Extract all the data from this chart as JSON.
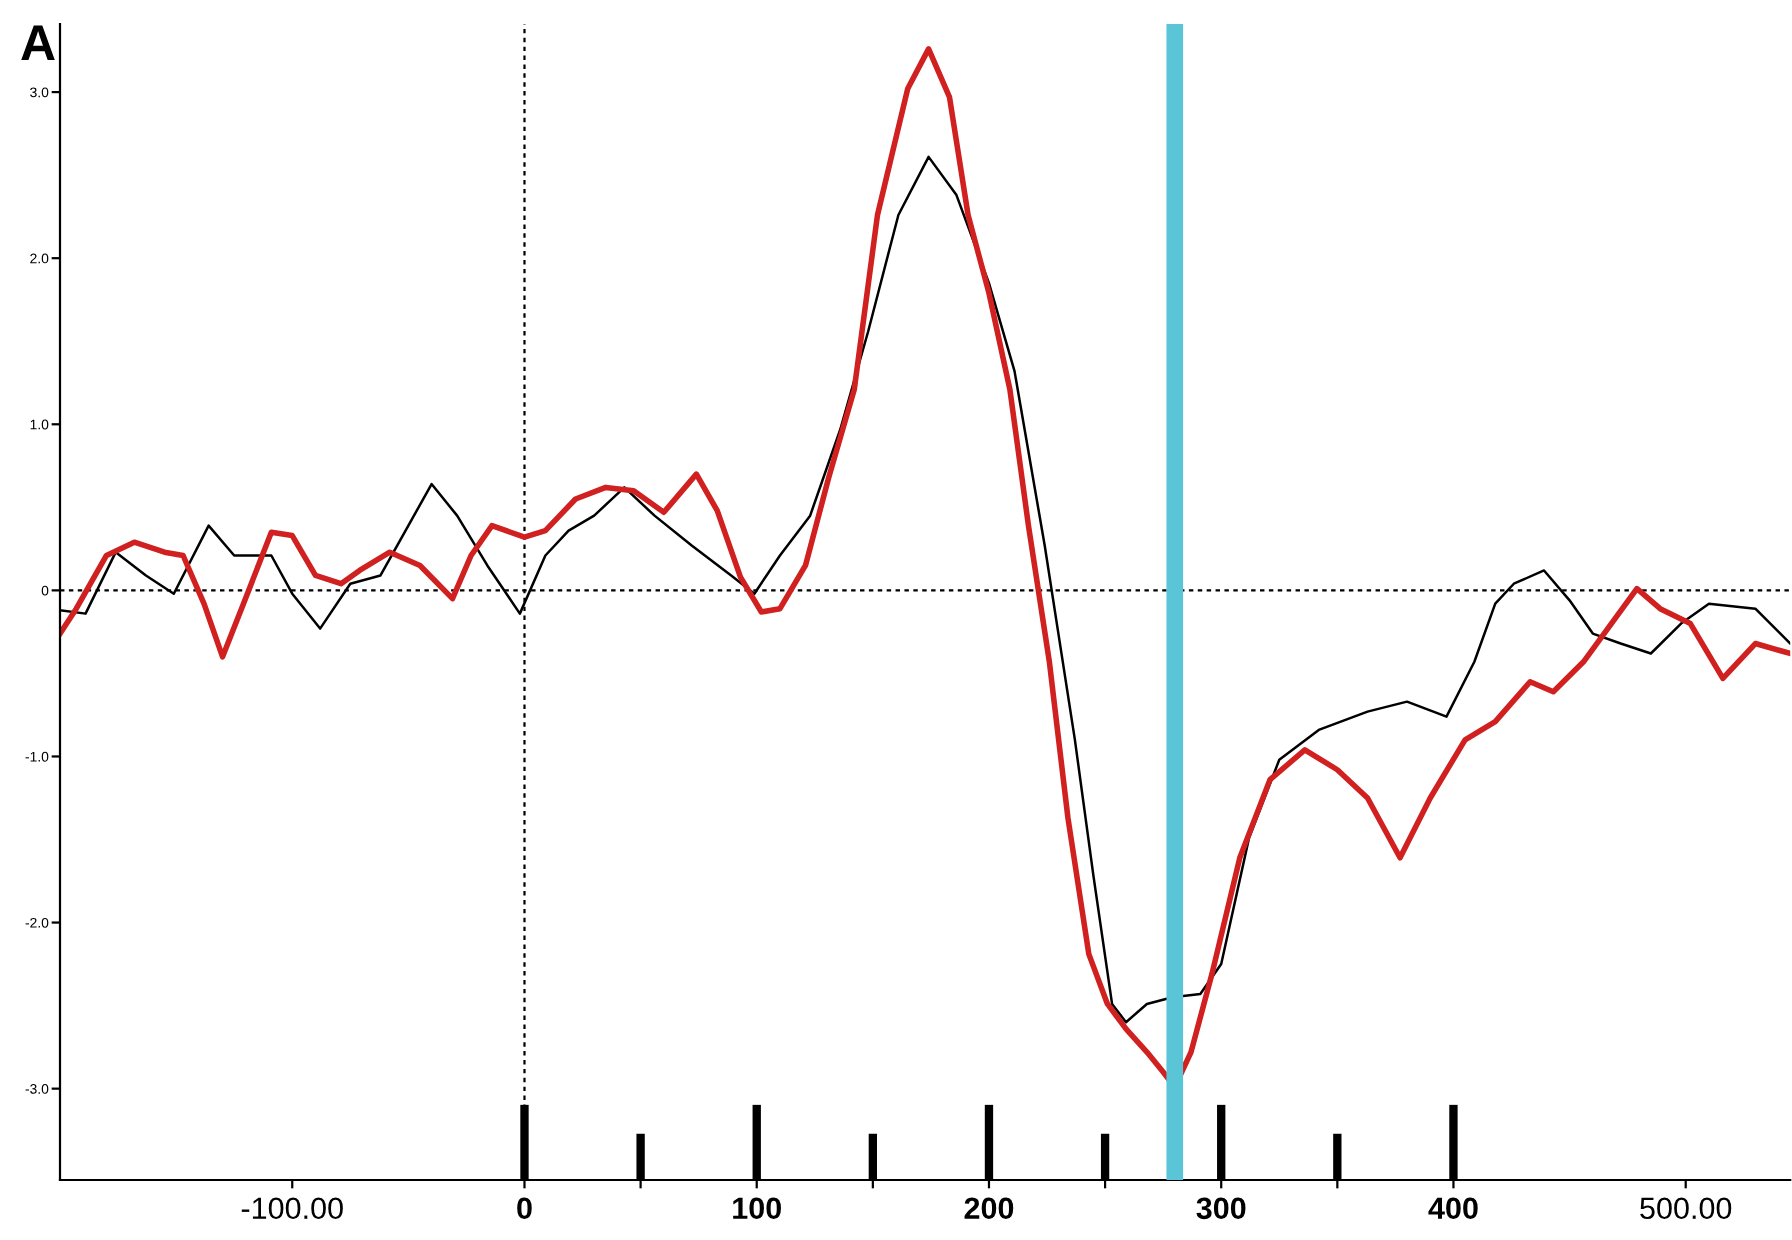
{
  "chart_data": {
    "type": "line",
    "annotations": [
      "A"
    ],
    "xlim": [
      -200,
      545
    ],
    "ylim": [
      -3.55,
      3.41
    ],
    "xticks": [
      {
        "value": -100,
        "label": "-100.00"
      },
      0,
      {
        "value": 50,
        "label": null
      },
      100,
      {
        "value": 150,
        "label": null
      },
      200,
      {
        "value": 250,
        "label": null
      },
      300,
      {
        "value": 350,
        "label": null
      },
      400,
      {
        "value": 500,
        "label": "500.00"
      }
    ],
    "yticks": [
      {
        "value": 3,
        "label": "3.0"
      },
      {
        "value": 2,
        "label": "2.0"
      },
      {
        "value": 1,
        "label": "1.0"
      },
      0,
      {
        "value": -1,
        "label": "-1.0"
      },
      {
        "value": -2,
        "label": "-2.0"
      },
      {
        "value": -3,
        "label": "-3.0"
      }
    ],
    "grid": false,
    "legend": false,
    "ref_lines": [
      {
        "axis": "x",
        "value": 0,
        "line_style": "dotted",
        "color": "#000000"
      },
      {
        "axis": "y",
        "value": 0,
        "line_style": "dotted",
        "color": "#000000"
      },
      {
        "axis": "x",
        "value": 280,
        "line_style": "solid",
        "color": "#5bc5d8"
      }
    ],
    "series": [
      {
        "color": "#000000",
        "x": [
          -200,
          -189,
          -176,
          -163,
          -151,
          -136,
          -125,
          -109,
          -100,
          -88,
          -75,
          -62,
          -50,
          -40,
          -29,
          -16,
          -2,
          9,
          19,
          30,
          43,
          56,
          72,
          89,
          99,
          110,
          123,
          136,
          148,
          161,
          174,
          186,
          200,
          211,
          224,
          237,
          245,
          253,
          259,
          268,
          279,
          291,
          300,
          312,
          325,
          342,
          363,
          380,
          397,
          409,
          418,
          426,
          439,
          450,
          460,
          472,
          485,
          498,
          510,
          530,
          545
        ],
        "values": [
          -0.12,
          -0.14,
          0.23,
          0.09,
          -0.02,
          0.39,
          0.21,
          0.21,
          -0.02,
          -0.23,
          0.04,
          0.09,
          0.39,
          0.64,
          0.45,
          0.15,
          -0.14,
          0.21,
          0.36,
          0.45,
          0.62,
          0.45,
          0.27,
          0.09,
          -0.02,
          0.21,
          0.45,
          0.97,
          1.56,
          2.26,
          2.61,
          2.38,
          1.85,
          1.32,
          0.27,
          -0.9,
          -1.72,
          -2.49,
          -2.6,
          -2.49,
          -2.45,
          -2.43,
          -2.25,
          -1.49,
          -1.02,
          -0.84,
          -0.73,
          -0.67,
          -0.76,
          -0.43,
          -0.08,
          0.04,
          0.12,
          -0.06,
          -0.26,
          -0.32,
          -0.38,
          -0.2,
          -0.08,
          -0.11,
          -0.32
        ]
      },
      {
        "color": "#d02020",
        "x": [
          -200,
          -193,
          -180,
          -168,
          -155,
          -147,
          -138,
          -130,
          -121,
          -109,
          -100,
          -90,
          -79,
          -71,
          -58,
          -45,
          -31,
          -23,
          -14,
          0,
          9,
          22,
          35,
          47,
          60,
          74,
          83,
          93,
          102,
          110,
          121,
          131,
          142,
          152,
          165,
          174,
          183,
          191,
          200,
          209,
          217,
          226,
          234,
          243,
          251,
          259,
          268,
          275,
          280,
          287,
          296,
          308,
          321,
          336,
          350,
          363,
          377,
          390,
          405,
          418,
          433,
          443,
          456,
          468,
          479,
          489,
          502,
          516,
          530,
          545
        ],
        "values": [
          -0.26,
          -0.11,
          0.21,
          0.29,
          0.23,
          0.21,
          -0.08,
          -0.4,
          -0.08,
          0.35,
          0.33,
          0.09,
          0.04,
          0.12,
          0.23,
          0.15,
          -0.05,
          0.21,
          0.39,
          0.32,
          0.36,
          0.55,
          0.62,
          0.6,
          0.47,
          0.7,
          0.48,
          0.08,
          -0.13,
          -0.11,
          0.15,
          0.68,
          1.21,
          2.26,
          3.02,
          3.26,
          2.97,
          2.26,
          1.79,
          1.21,
          0.39,
          -0.43,
          -1.37,
          -2.19,
          -2.49,
          -2.64,
          -2.78,
          -2.9,
          -2.99,
          -2.78,
          -2.31,
          -1.61,
          -1.14,
          -0.96,
          -1.08,
          -1.25,
          -1.61,
          -1.25,
          -0.9,
          -0.79,
          -0.55,
          -0.61,
          -0.43,
          -0.2,
          0.01,
          -0.11,
          -0.2,
          -0.53,
          -0.32,
          -0.38
        ]
      }
    ]
  }
}
